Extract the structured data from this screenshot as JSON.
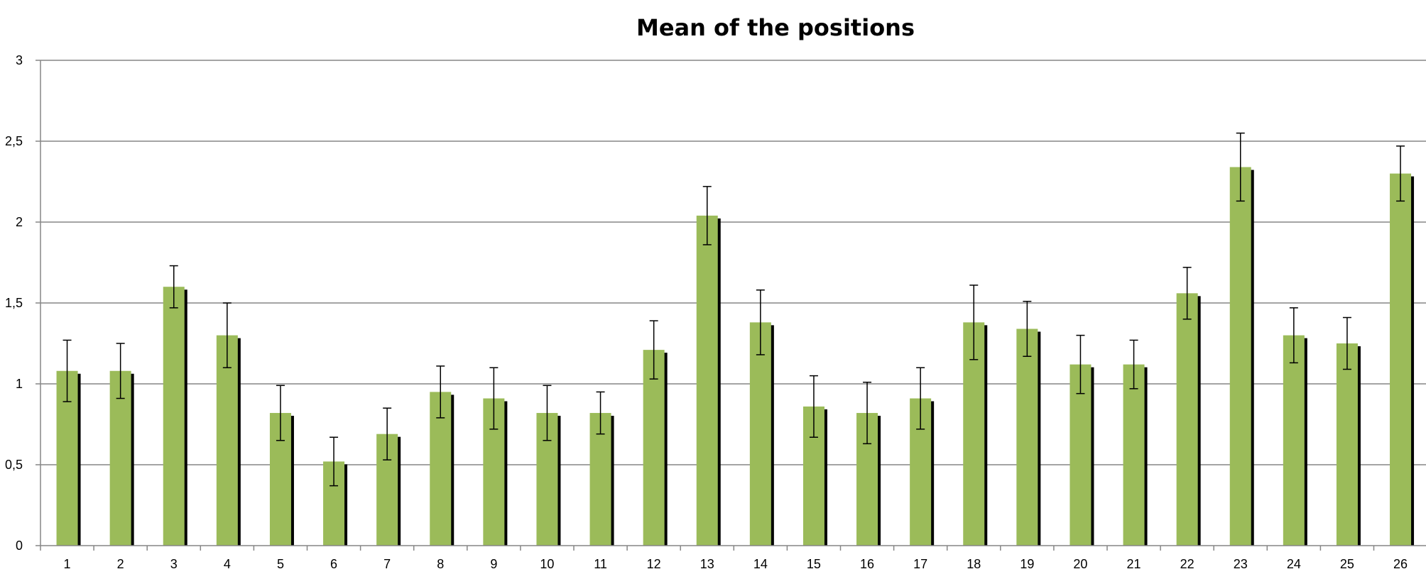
{
  "chart_data": {
    "type": "bar",
    "title": "Mean of the positions",
    "xlabel": "",
    "ylabel": "",
    "categories": [
      "1",
      "2",
      "3",
      "4",
      "5",
      "6",
      "7",
      "8",
      "9",
      "10",
      "11",
      "12",
      "13",
      "14",
      "15",
      "16",
      "17",
      "18",
      "19",
      "20",
      "21",
      "22",
      "23",
      "24",
      "25",
      "26"
    ],
    "series": [
      {
        "values": [
          1.08,
          1.08,
          1.6,
          1.3,
          0.82,
          0.52,
          0.69,
          0.95,
          0.91,
          0.82,
          0.82,
          1.21,
          2.04,
          1.38,
          0.86,
          0.82,
          0.91,
          1.38,
          1.34,
          1.12,
          1.12,
          1.56,
          2.34,
          1.3,
          1.25,
          2.3
        ],
        "error": [
          0.19,
          0.17,
          0.13,
          0.2,
          0.17,
          0.15,
          0.16,
          0.16,
          0.19,
          0.17,
          0.13,
          0.18,
          0.18,
          0.2,
          0.19,
          0.19,
          0.19,
          0.23,
          0.17,
          0.18,
          0.15,
          0.16,
          0.21,
          0.17,
          0.16,
          0.17
        ]
      }
    ],
    "ylim": [
      0,
      3
    ],
    "yticks": [
      0,
      0.5,
      1,
      1.5,
      2,
      2.5,
      3
    ],
    "ytick_labels": [
      "0",
      "0,5",
      "1",
      "1,5",
      "2",
      "2,5",
      "3"
    ],
    "grid": true,
    "legend": "none",
    "colors": {
      "bar": "#9BBB59",
      "bar_shadow": "#000000",
      "grid": "#868686",
      "axis": "#868686",
      "error": "#000000"
    }
  }
}
